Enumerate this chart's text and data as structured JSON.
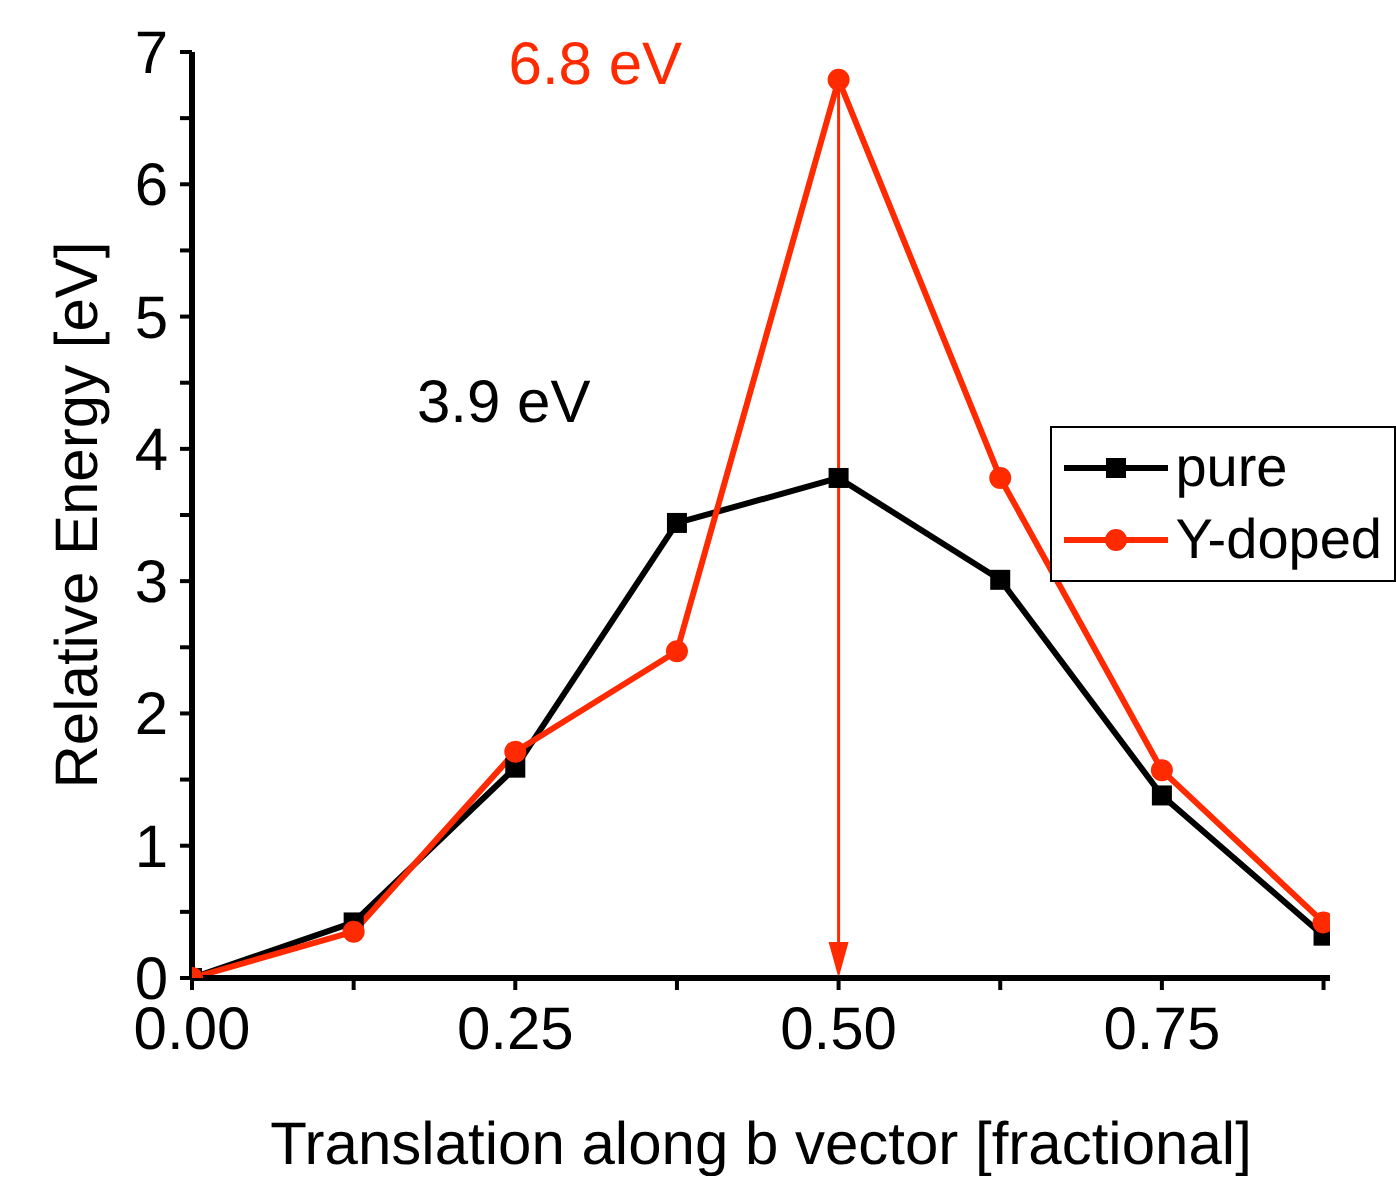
{
  "chart_data": {
    "type": "line",
    "xlabel": "Translation along b vector [fractional]",
    "ylabel": "Relative Energy [eV]",
    "x": [
      0,
      0.125,
      0.25,
      0.375,
      0.5,
      0.625,
      0.75,
      0.875
    ],
    "series": [
      {
        "name": "pure",
        "color": "#000000",
        "marker": "square",
        "values": [
          0,
          0.42,
          1.59,
          3.44,
          3.78,
          3.01,
          1.38,
          0.32
        ]
      },
      {
        "name": "Y-doped",
        "color": "#ff2a00",
        "marker": "circle",
        "values": [
          0,
          0.35,
          1.71,
          2.47,
          6.79,
          3.78,
          1.57,
          0.42
        ]
      }
    ],
    "xlim": [
      0,
      0.88
    ],
    "xticks": [
      {
        "value": 0,
        "label": "0.00"
      },
      {
        "value": 0.125,
        "label": null
      },
      {
        "value": 0.25,
        "label": "0.25"
      },
      {
        "value": 0.375,
        "label": null
      },
      {
        "value": 0.5,
        "label": "0.50"
      },
      {
        "value": 0.625,
        "label": null
      },
      {
        "value": 0.75,
        "label": "0.75"
      },
      {
        "value": 0.875,
        "label": null
      }
    ],
    "ylim": [
      0,
      7
    ],
    "yticks": [
      0,
      {
        "value": 0.5,
        "label": null
      },
      1,
      {
        "value": 1.5,
        "label": null
      },
      2,
      {
        "value": 2.5,
        "label": null
      },
      3,
      {
        "value": 3.5,
        "label": null
      },
      4,
      {
        "value": 4.5,
        "label": null
      },
      5,
      {
        "value": 5.5,
        "label": null
      },
      6,
      {
        "value": 6.5,
        "label": null
      },
      7
    ],
    "annotations": [
      {
        "text": "6.8 eV",
        "x": 0.5,
        "y": 6.79
      },
      {
        "text": "3.9 eV",
        "x": 0.375,
        "y": 3.44
      }
    ],
    "ref_lines": [
      {
        "axis": "x",
        "value": 0.5,
        "color": "#ff2a00"
      }
    ],
    "legend": "top right",
    "grid": false,
    "line_style": "solid"
  }
}
